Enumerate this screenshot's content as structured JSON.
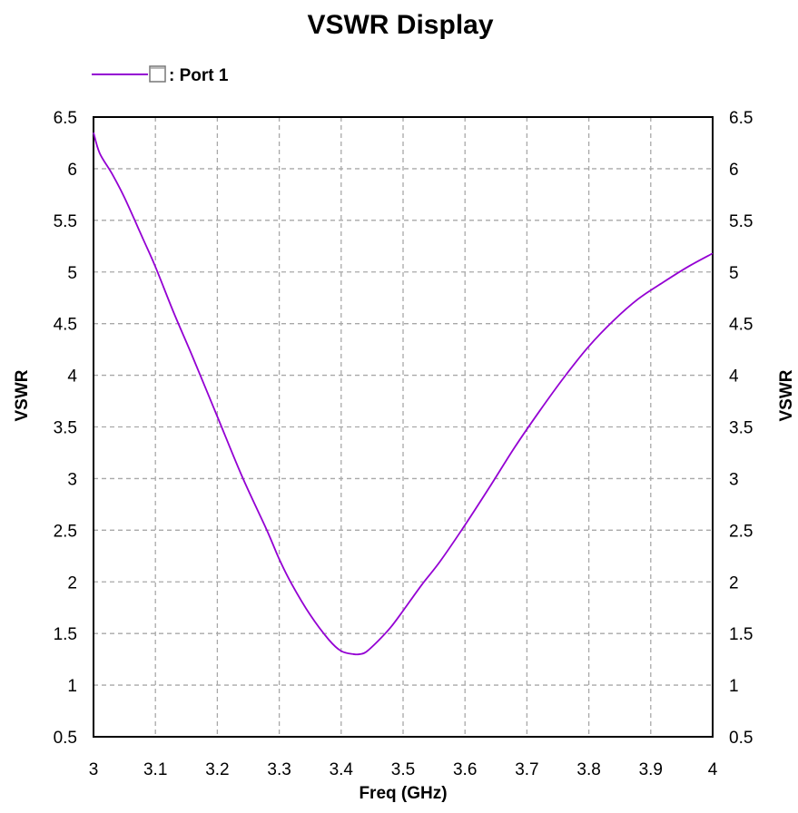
{
  "chart_data": {
    "type": "line",
    "title": "VSWR Display",
    "xlabel": "Freq (GHz)",
    "ylabel_left": "VSWR",
    "ylabel_right": "VSWR",
    "xlim": [
      3,
      4
    ],
    "ylim": [
      0.5,
      6.5
    ],
    "x_ticks": [
      3,
      3.1,
      3.2,
      3.3,
      3.4,
      3.5,
      3.6,
      3.7,
      3.8,
      3.9,
      4
    ],
    "x_tick_labels": [
      "3",
      "3.1",
      "3.2",
      "3.3",
      "3.4",
      "3.5",
      "3.6",
      "3.7",
      "3.8",
      "3.9",
      "4"
    ],
    "y_ticks": [
      0.5,
      1,
      1.5,
      2,
      2.5,
      3,
      3.5,
      4,
      4.5,
      5,
      5.5,
      6,
      6.5
    ],
    "y_tick_labels": [
      "0.5",
      "1",
      "1.5",
      "2",
      "2.5",
      "3",
      "3.5",
      "4",
      "4.5",
      "5",
      "5.5",
      "6",
      "6.5"
    ],
    "grid": true,
    "legend_position": "top-left",
    "series": [
      {
        "name": ": Port 1",
        "color": "#9400d3",
        "x": [
          3.0,
          3.01,
          3.03,
          3.05,
          3.08,
          3.1,
          3.13,
          3.16,
          3.2,
          3.24,
          3.28,
          3.3,
          3.32,
          3.35,
          3.38,
          3.4,
          3.42,
          3.43,
          3.44,
          3.46,
          3.48,
          3.5,
          3.53,
          3.56,
          3.6,
          3.64,
          3.68,
          3.72,
          3.76,
          3.8,
          3.84,
          3.88,
          3.92,
          3.96,
          4.0
        ],
        "y": [
          6.35,
          6.15,
          5.95,
          5.72,
          5.32,
          5.05,
          4.6,
          4.18,
          3.6,
          3.02,
          2.5,
          2.22,
          1.98,
          1.68,
          1.44,
          1.33,
          1.3,
          1.3,
          1.32,
          1.43,
          1.56,
          1.72,
          1.97,
          2.2,
          2.55,
          2.92,
          3.3,
          3.65,
          3.98,
          4.28,
          4.53,
          4.74,
          4.9,
          5.05,
          5.18
        ]
      }
    ]
  }
}
